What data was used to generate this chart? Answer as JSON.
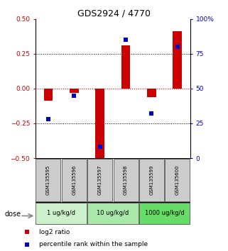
{
  "title": "GDS2924 / 4770",
  "samples": [
    "GSM135595",
    "GSM135596",
    "GSM135597",
    "GSM135598",
    "GSM135599",
    "GSM135600"
  ],
  "log2_ratios": [
    -0.09,
    -0.03,
    -0.52,
    0.31,
    -0.06,
    0.41
  ],
  "percentile_ranks": [
    28,
    45,
    8,
    85,
    32,
    80
  ],
  "ylim_left": [
    -0.5,
    0.5
  ],
  "ylim_right": [
    0,
    100
  ],
  "yticks_left": [
    -0.5,
    -0.25,
    0.0,
    0.25,
    0.5
  ],
  "yticks_right": [
    0,
    25,
    50,
    75,
    100
  ],
  "ytick_right_labels": [
    "0",
    "25",
    "50",
    "75",
    "100%"
  ],
  "hlines": [
    0.25,
    -0.25
  ],
  "hline_zero": 0.0,
  "dose_groups": [
    {
      "label": "1 ug/kg/d",
      "samples": [
        0,
        1
      ],
      "color": "#ccf0cc"
    },
    {
      "label": "10 ug/kg/d",
      "samples": [
        2,
        3
      ],
      "color": "#aae8aa"
    },
    {
      "label": "1000 ug/kg/d",
      "samples": [
        4,
        5
      ],
      "color": "#66dd66"
    }
  ],
  "bar_color": "#cc0000",
  "dot_color": "#0000cc",
  "bar_width": 0.35,
  "dot_size": 18,
  "sample_box_color": "#cccccc",
  "ylabel_left_color": "#cc0000",
  "ylabel_right_color": "#0000cc",
  "dose_label": "dose",
  "legend_bar_label": "log2 ratio",
  "legend_dot_label": "percentile rank within the sample"
}
